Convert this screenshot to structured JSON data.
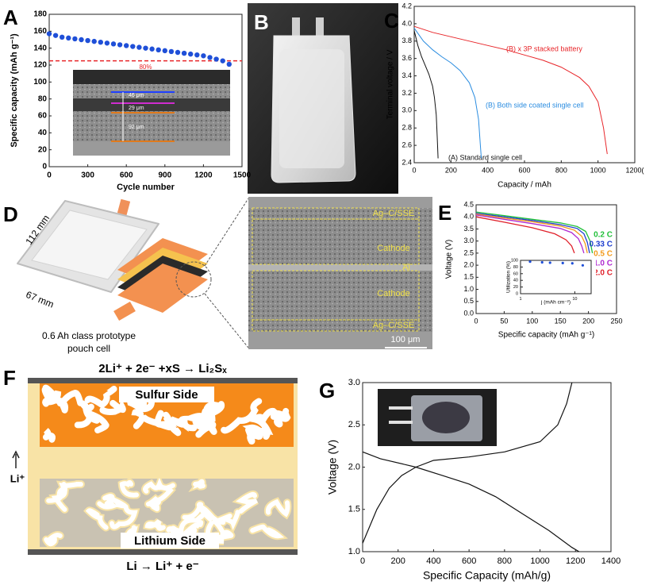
{
  "chart_data": [
    {
      "panel": "A",
      "type": "scatter",
      "x_label": "Cycle number",
      "y_label": "Specific capacity (mAh g⁻¹)",
      "xlim": [
        0,
        1500
      ],
      "xticks": [
        0,
        300,
        600,
        900,
        1200,
        1500
      ],
      "ylim": [
        0,
        180
      ],
      "yticks": [
        0,
        20,
        40,
        60,
        80,
        100,
        120,
        140,
        160,
        180
      ],
      "series": [
        {
          "color": "#1f4fd8",
          "x": [
            0,
            50,
            100,
            150,
            200,
            250,
            300,
            350,
            400,
            450,
            500,
            550,
            600,
            650,
            700,
            750,
            800,
            850,
            900,
            950,
            1000,
            1050,
            1100,
            1150,
            1200,
            1250,
            1300,
            1350,
            1400
          ],
          "values": [
            157,
            155,
            153,
            152,
            151,
            150,
            149,
            148,
            147,
            146,
            145,
            144,
            143,
            142,
            141,
            140,
            139,
            138,
            137,
            136,
            135,
            134,
            133,
            132,
            131,
            129,
            127,
            125,
            121
          ]
        }
      ],
      "threshold": {
        "value": 125,
        "color": "#e8262a"
      },
      "annotation": "80%",
      "inset_labels": [
        "46 μm",
        "29 μm",
        "92 μm"
      ]
    },
    {
      "panel": "C",
      "type": "line",
      "x_label": "Capacity / mAh",
      "y_label": "Terminal voltage / V",
      "xlim": [
        0,
        1200
      ],
      "xticks": [
        0,
        200,
        400,
        600,
        800,
        1000,
        {
          "value": 1200,
          "label": "1200("
        }
      ],
      "ylim": [
        2.4,
        4.2
      ],
      "yticks": [
        2.4,
        2.6,
        2.8,
        {
          "value": 3,
          "label": "3.0"
        },
        3.2,
        3.4,
        3.6,
        3.8,
        {
          "value": 4,
          "label": "4.0"
        },
        4.2
      ],
      "series": [
        {
          "name": "(A) Standard single cell",
          "color": "#111111",
          "x": [
            0,
            20,
            40,
            60,
            80,
            100,
            110,
            120,
            125,
            130
          ],
          "values": [
            3.92,
            3.75,
            3.62,
            3.52,
            3.42,
            3.28,
            3.15,
            2.95,
            2.7,
            2.45
          ]
        },
        {
          "name": "(B) Both side coated single cell",
          "color": "#2a8ce0",
          "x": [
            0,
            50,
            100,
            150,
            200,
            250,
            300,
            330,
            350,
            360,
            365
          ],
          "values": [
            3.95,
            3.8,
            3.7,
            3.62,
            3.55,
            3.46,
            3.32,
            3.15,
            2.9,
            2.6,
            2.45
          ]
        },
        {
          "name": "(B) x 3P stacked battery",
          "color": "#e8262a",
          "x": [
            0,
            100,
            200,
            300,
            400,
            500,
            600,
            700,
            800,
            900,
            950,
            1000,
            1030,
            1050
          ],
          "values": [
            3.97,
            3.9,
            3.85,
            3.8,
            3.75,
            3.7,
            3.64,
            3.58,
            3.5,
            3.38,
            3.28,
            3.1,
            2.8,
            2.5
          ]
        }
      ]
    },
    {
      "panel": "E",
      "type": "line",
      "x_label": "Specific capacity (mAh g⁻¹)",
      "y_label": "Voltage (V)",
      "xlim": [
        0,
        250
      ],
      "xticks": [
        0,
        50,
        100,
        150,
        200,
        250
      ],
      "ylim": [
        0,
        4.5
      ],
      "yticks": [
        {
          "value": 0,
          "label": "0.0"
        },
        0.5,
        {
          "value": 1,
          "label": "1.0"
        },
        1.5,
        {
          "value": 2,
          "label": "2.0"
        },
        2.5,
        {
          "value": 3,
          "label": "3.0"
        },
        3.5,
        {
          "value": 4,
          "label": "4.0"
        },
        4.5
      ],
      "series": [
        {
          "name": "0.2 C",
          "color": "#22c03a",
          "x": [
            0,
            50,
            100,
            150,
            180,
            195,
            203,
            207
          ],
          "values": [
            4.2,
            4.05,
            3.9,
            3.75,
            3.6,
            3.4,
            3.0,
            2.5
          ]
        },
        {
          "name": "0.33 C",
          "color": "#1f3fd0",
          "x": [
            0,
            50,
            100,
            150,
            180,
            192,
            198,
            202
          ],
          "values": [
            4.15,
            4.0,
            3.85,
            3.68,
            3.52,
            3.3,
            2.95,
            2.5
          ]
        },
        {
          "name": "0.5 C",
          "color": "#f39a1c",
          "x": [
            0,
            50,
            100,
            150,
            175,
            188,
            194,
            198
          ],
          "values": [
            4.12,
            3.95,
            3.8,
            3.62,
            3.45,
            3.2,
            2.9,
            2.5
          ]
        },
        {
          "name": "1.0 C",
          "color": "#b02ad0",
          "x": [
            0,
            50,
            100,
            150,
            170,
            182,
            188,
            192
          ],
          "values": [
            4.08,
            3.9,
            3.72,
            3.52,
            3.35,
            3.1,
            2.8,
            2.5
          ]
        },
        {
          "name": "2.0 C",
          "color": "#e0202a",
          "x": [
            0,
            50,
            100,
            140,
            160,
            170,
            175
          ],
          "values": [
            4.0,
            3.78,
            3.55,
            3.3,
            3.05,
            2.8,
            2.5
          ]
        }
      ]
    },
    {
      "type": "scatter",
      "x_label": "j (mAh cm⁻²)",
      "y_label": "Utilization (%)",
      "xscale": "log",
      "xlim": [
        1,
        20
      ],
      "xticks": [
        1,
        10
      ],
      "ylim": [
        0,
        100
      ],
      "yticks": [
        0,
        20,
        40,
        60,
        80,
        100
      ],
      "series": [
        {
          "color": "#1f4fd8",
          "x": [
            1.5,
            2.5,
            3.5,
            6,
            9,
            14
          ],
          "values": [
            96,
            94,
            93,
            92,
            91,
            85
          ]
        }
      ]
    },
    {
      "panel": "G",
      "type": "line",
      "x_label": "Specific Capacity (mAh/g)",
      "y_label": "Voltage (V)",
      "xlim": [
        0,
        1400
      ],
      "xticks": [
        0,
        200,
        400,
        600,
        800,
        1000,
        1200,
        1400
      ],
      "ylim": [
        1,
        3
      ],
      "yticks": [
        {
          "value": 1,
          "label": "1.0"
        },
        1.5,
        {
          "value": 2,
          "label": "2.0"
        },
        2.5,
        {
          "value": 3,
          "label": "3.0"
        }
      ],
      "series": [
        {
          "color": "#111111",
          "x": [
            0,
            100,
            300,
            450,
            600,
            750,
            900,
            1050,
            1180,
            1220
          ],
          "values": [
            2.18,
            2.1,
            2.0,
            1.9,
            1.8,
            1.65,
            1.45,
            1.25,
            1.05,
            1.0
          ]
        },
        {
          "color": "#111111",
          "x": [
            0,
            80,
            150,
            220,
            300,
            400,
            600,
            800,
            1000,
            1100,
            1150,
            1180
          ],
          "values": [
            1.1,
            1.5,
            1.75,
            1.9,
            2.0,
            2.08,
            2.12,
            2.18,
            2.3,
            2.5,
            2.75,
            3.0
          ]
        }
      ]
    }
  ],
  "panel_b": {
    "label": "B"
  },
  "panel_d": {
    "label": "D",
    "dimensions": [
      "112 mm",
      "67 mm"
    ],
    "caption": [
      "0.6 Ah class prototype",
      "pouch cell"
    ],
    "layers": [
      "Ag–C/SSE",
      "Cathode",
      "Al",
      "Cathode",
      "Ag–C/SSE"
    ],
    "scale_bar": "100 μm"
  },
  "panel_f": {
    "label": "F",
    "top_reaction": "2Li⁺ + 2e⁻ +xS → Li₂Sₓ",
    "top_side": "Sulfur Side",
    "ion": "Li⁺",
    "bottom_side": "Lithium Side",
    "bottom_reaction": "Li → Li⁺ + e⁻"
  }
}
